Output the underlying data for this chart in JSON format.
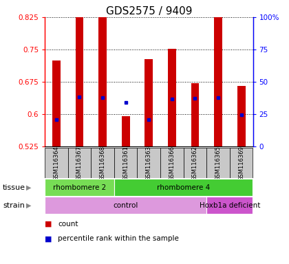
{
  "title": "GDS2575 / 9409",
  "samples": [
    "GSM116364",
    "GSM116367",
    "GSM116368",
    "GSM116361",
    "GSM116363",
    "GSM116366",
    "GSM116362",
    "GSM116365",
    "GSM116369"
  ],
  "bar_values": [
    0.725,
    0.84,
    0.855,
    0.596,
    0.728,
    0.752,
    0.672,
    0.855,
    0.665
  ],
  "bar_bottom": 0.525,
  "blue_dot_values": [
    0.587,
    0.64,
    0.638,
    0.628,
    0.588,
    0.635,
    0.637,
    0.638,
    0.598
  ],
  "ylim": [
    0.525,
    0.825
  ],
  "yticks_left": [
    0.525,
    0.6,
    0.675,
    0.75,
    0.825
  ],
  "yticks_right_labels": [
    "0",
    "25",
    "50",
    "75",
    "100%"
  ],
  "yticks_right_pct": [
    0,
    25,
    50,
    75,
    100
  ],
  "bar_color": "#cc0000",
  "dot_color": "#0000cc",
  "tissue_groups": [
    {
      "label": "rhombomere 2",
      "start": 0,
      "end": 3,
      "color": "#77dd55"
    },
    {
      "label": "rhombomere 4",
      "start": 3,
      "end": 9,
      "color": "#44cc33"
    }
  ],
  "strain_groups": [
    {
      "label": "control",
      "start": 0,
      "end": 7,
      "color": "#dd99dd"
    },
    {
      "label": "Hoxb1a deficient",
      "start": 7,
      "end": 9,
      "color": "#cc55cc"
    }
  ],
  "tissue_label": "tissue",
  "strain_label": "strain",
  "legend_count": "count",
  "legend_pct": "percentile rank within the sample"
}
